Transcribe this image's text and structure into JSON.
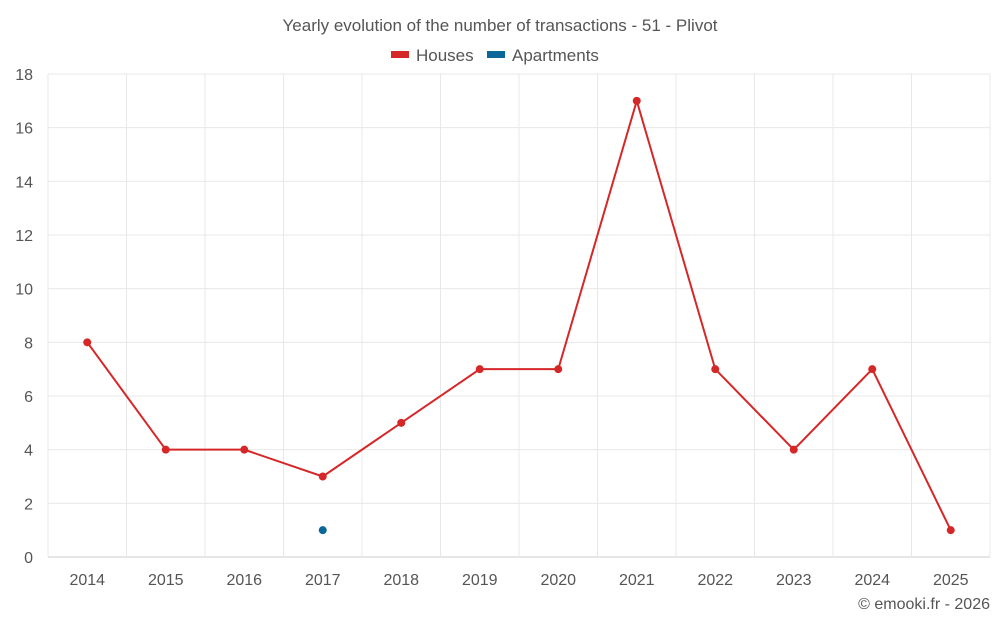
{
  "chart_data": {
    "type": "line",
    "title": "Yearly evolution of the number of transactions - 51 - Plivot",
    "categories": [
      "2014",
      "2015",
      "2016",
      "2017",
      "2018",
      "2019",
      "2020",
      "2021",
      "2022",
      "2023",
      "2024",
      "2025"
    ],
    "series": [
      {
        "name": "Houses",
        "color": "#d62728",
        "values": [
          8,
          4,
          4,
          3,
          5,
          7,
          7,
          17,
          7,
          4,
          7,
          1
        ]
      },
      {
        "name": "Apartments",
        "color": "#0b6699",
        "values": [
          null,
          null,
          null,
          1,
          null,
          null,
          null,
          null,
          null,
          null,
          null,
          null
        ]
      }
    ],
    "yticks": [
      "0",
      "2",
      "4",
      "6",
      "8",
      "10",
      "12",
      "14",
      "16",
      "18"
    ],
    "ylim": [
      0,
      18
    ],
    "xlabel": "",
    "ylabel": "",
    "grid": true,
    "legend_position": "top-center"
  },
  "footer": {
    "credit": "© emooki.fr - 2026"
  }
}
